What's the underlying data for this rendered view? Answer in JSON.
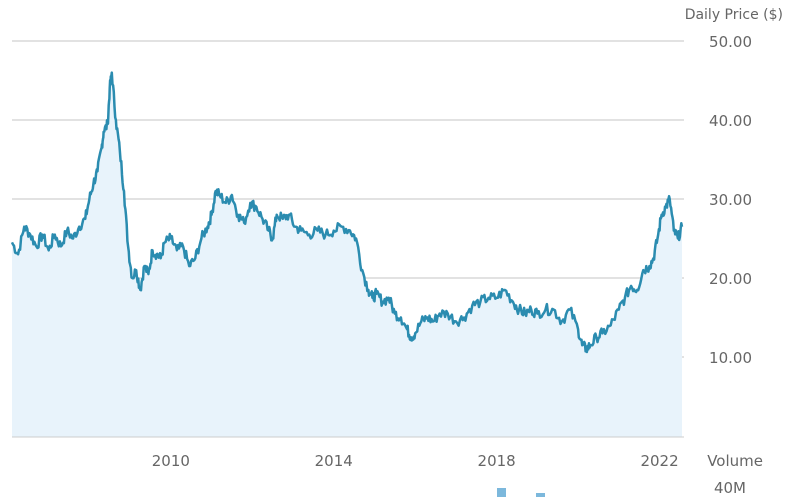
{
  "chart_data": {
    "type": "area",
    "ylabel": "Daily Price ($)",
    "volume_label": "Volume",
    "volume_tick": "40M",
    "ylim": [
      0,
      50
    ],
    "y_ticks": [
      {
        "value": 50,
        "label": "50.00"
      },
      {
        "value": 40,
        "label": "40.00"
      },
      {
        "value": 30,
        "label": "30.00"
      },
      {
        "value": 20,
        "label": "20.00"
      },
      {
        "value": 10,
        "label": "10.00"
      }
    ],
    "xlim": [
      2006.1,
      2022.6
    ],
    "x_ticks": [
      {
        "value": 2010,
        "label": "2010"
      },
      {
        "value": 2014,
        "label": "2014"
      },
      {
        "value": 2018,
        "label": "2018"
      },
      {
        "value": 2022,
        "label": "2022"
      }
    ],
    "grid": true,
    "colors": {
      "line": "#2b8cb0",
      "fill": "#e8f3fb",
      "grid": "#d8d8d8",
      "volume": "#7cb8dc"
    },
    "series": [
      {
        "x": [
          2006.1,
          2006.25,
          2006.4,
          2006.55,
          2006.7,
          2006.85,
          2007.0,
          2007.15,
          2007.3,
          2007.45,
          2007.6,
          2007.75,
          2007.9,
          2008.0,
          2008.1,
          2008.2,
          2008.3,
          2008.35,
          2008.45,
          2008.5,
          2008.55,
          2008.65,
          2008.75,
          2008.85,
          2008.95,
          2009.05,
          2009.15,
          2009.25,
          2009.35,
          2009.45,
          2009.55,
          2009.65,
          2009.75,
          2009.85,
          2010.0,
          2010.15,
          2010.3,
          2010.45,
          2010.6,
          2010.75,
          2010.9,
          2011.0,
          2011.1,
          2011.2,
          2011.35,
          2011.5,
          2011.65,
          2011.8,
          2011.95,
          2012.1,
          2012.25,
          2012.4,
          2012.5,
          2012.6,
          2012.75,
          2012.9,
          2013.05,
          2013.2,
          2013.4,
          2013.6,
          2013.8,
          2014.0,
          2014.2,
          2014.4,
          2014.55,
          2014.7,
          2014.85,
          2014.95,
          2015.05,
          2015.2,
          2015.35,
          2015.5,
          2015.65,
          2015.8,
          2015.9,
          2016.0,
          2016.15,
          2016.3,
          2016.45,
          2016.6,
          2016.8,
          2017.0,
          2017.2,
          2017.4,
          2017.6,
          2017.8,
          2018.0,
          2018.2,
          2018.4,
          2018.55,
          2018.7,
          2018.85,
          2019.0,
          2019.2,
          2019.4,
          2019.6,
          2019.8,
          2020.0,
          2020.1,
          2020.2,
          2020.3,
          2020.45,
          2020.6,
          2020.8,
          2021.0,
          2021.15,
          2021.3,
          2021.45,
          2021.6,
          2021.75,
          2021.85,
          2021.95,
          2022.05,
          2022.15,
          2022.25,
          2022.35,
          2022.45,
          2022.55
        ],
        "y": [
          24.5,
          23.0,
          26.5,
          25.5,
          24.0,
          25.5,
          23.5,
          25.5,
          24.0,
          26.0,
          25.0,
          26.5,
          27.5,
          30.0,
          32.0,
          33.5,
          36.5,
          38.5,
          39.5,
          44.0,
          46.0,
          40.0,
          36.0,
          31.0,
          24.0,
          20.0,
          21.0,
          18.5,
          21.5,
          20.5,
          23.5,
          23.0,
          22.5,
          24.5,
          25.0,
          23.5,
          24.0,
          21.5,
          22.5,
          25.0,
          26.5,
          28.0,
          31.0,
          30.5,
          29.5,
          30.5,
          28.0,
          27.0,
          29.5,
          29.0,
          27.5,
          26.0,
          25.0,
          28.0,
          27.5,
          28.0,
          26.5,
          26.0,
          25.5,
          26.0,
          25.5,
          26.0,
          26.5,
          26.0,
          25.0,
          21.0,
          18.5,
          17.5,
          18.0,
          17.0,
          17.5,
          15.5,
          15.0,
          13.5,
          12.5,
          13.0,
          14.5,
          15.0,
          14.5,
          15.5,
          15.5,
          14.5,
          15.0,
          16.5,
          17.0,
          17.5,
          17.5,
          18.5,
          17.0,
          16.0,
          15.5,
          16.0,
          15.5,
          16.0,
          16.0,
          14.5,
          16.0,
          13.5,
          11.5,
          11.0,
          11.5,
          12.5,
          13.0,
          14.0,
          16.0,
          17.5,
          19.0,
          18.5,
          21.0,
          21.5,
          22.5,
          25.0,
          28.0,
          29.0,
          30.0,
          26.0,
          25.0,
          26.5
        ]
      }
    ]
  }
}
